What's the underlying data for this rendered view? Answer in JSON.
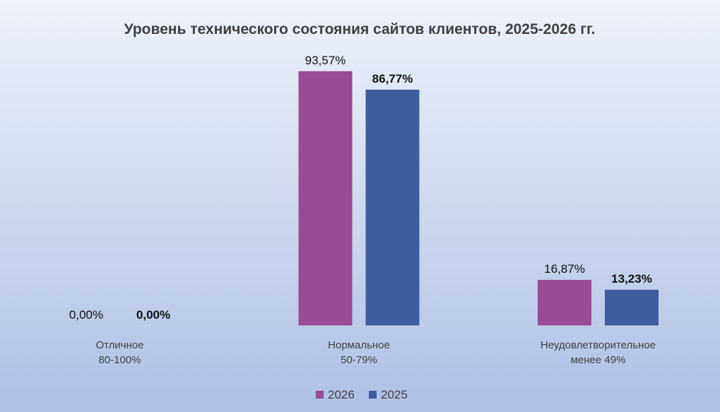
{
  "chart_data": {
    "type": "bar",
    "title": "Уровень технического состояния сайтов клиентов, 2025-2026 гг.",
    "categories": [
      [
        "Отличное",
        "80-100%"
      ],
      [
        "Нормальное",
        "50-79%"
      ],
      [
        "Неудовлетворительное",
        "менее 49%"
      ]
    ],
    "series": [
      {
        "name": "2026",
        "color": "#9b4b96",
        "values": [
          0,
          93.57,
          16.87
        ],
        "labels": [
          "0,00%",
          "93,57%",
          "16,87%"
        ],
        "label_bold": false
      },
      {
        "name": "2025",
        "color": "#3e5d9e",
        "values": [
          0,
          86.77,
          13.23
        ],
        "labels": [
          "0,00%",
          "86,77%",
          "13,23%"
        ],
        "label_bold": true
      }
    ],
    "ylim": [
      0,
      100
    ],
    "grid": false,
    "legend": "bottom",
    "background": [
      "#eef2fa",
      "#adc0e6"
    ]
  }
}
